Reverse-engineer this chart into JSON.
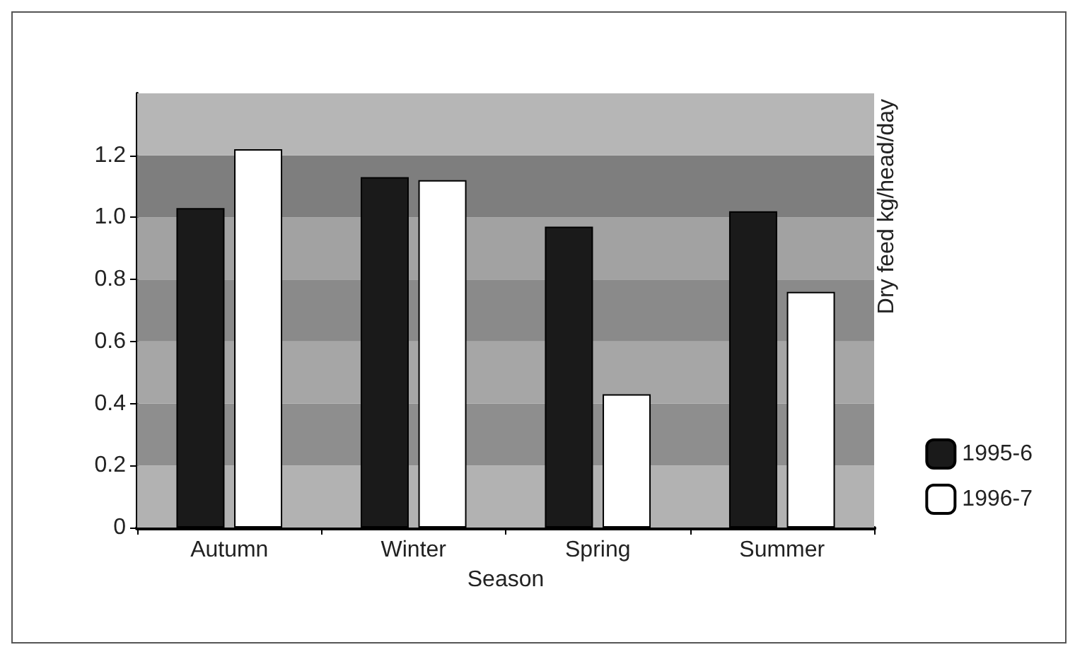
{
  "chart_data": {
    "type": "bar",
    "xlabel": "Season",
    "ylabel": "Dry feed kg/head/day",
    "categories": [
      "Autumn",
      "Winter",
      "Spring",
      "Summer"
    ],
    "series": [
      {
        "name": "1995-6",
        "color": "#1a1a1a",
        "values": [
          1.03,
          1.13,
          0.97,
          1.02
        ]
      },
      {
        "name": "1996-7",
        "color": "#ffffff",
        "values": [
          1.22,
          1.12,
          0.43,
          0.76
        ]
      }
    ],
    "ylim": [
      0,
      1.4
    ],
    "yticks": [
      0,
      0.2,
      0.4,
      0.6,
      0.8,
      {
        "value": 1,
        "label": "1.0"
      },
      1.2
    ],
    "bands": [
      {
        "axis": "y",
        "from": 0,
        "to": 0.2,
        "color": "#b2b2b2"
      },
      {
        "axis": "y",
        "from": 0.2,
        "to": 0.4,
        "color": "#8e8e8e"
      },
      {
        "axis": "y",
        "from": 0.4,
        "to": 0.6,
        "color": "#a6a6a6"
      },
      {
        "axis": "y",
        "from": 0.6,
        "to": 0.8,
        "color": "#8a8a8a"
      },
      {
        "axis": "y",
        "from": 0.8,
        "to": 1.0,
        "color": "#a2a2a2"
      },
      {
        "axis": "y",
        "from": 1.0,
        "to": 1.2,
        "color": "#7e7e7e"
      },
      {
        "axis": "y",
        "from": 1.2,
        "to": 1.4,
        "color": "#b6b6b6"
      }
    ],
    "legend": "bottom right",
    "grid": false
  }
}
